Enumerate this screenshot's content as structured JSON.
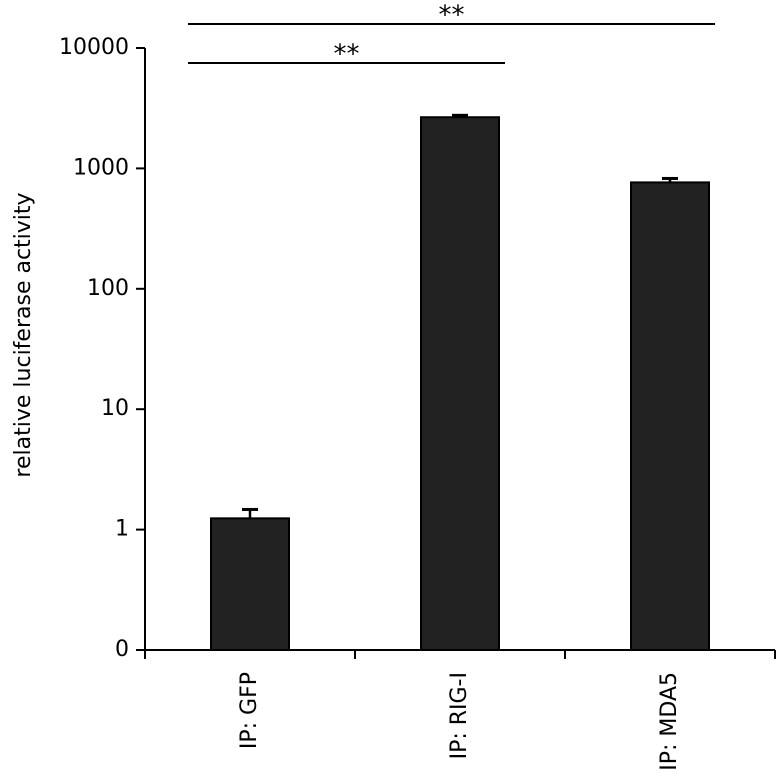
{
  "chart_data": {
    "type": "bar",
    "y_label": "relative luciferase activity",
    "categories": [
      "IP: GFP",
      "IP: RIG-I",
      "IP: MDA5"
    ],
    "values": [
      1.24,
      2660,
      765
    ],
    "errors": [
      0.23,
      100,
      60
    ],
    "color": "#222222",
    "log_scale": true,
    "ylim": [
      0.1,
      10000
    ],
    "yticks": [
      {
        "value": 0.1,
        "label": "0"
      },
      1,
      10,
      100,
      1000,
      10000
    ],
    "grid": false,
    "comparisons": [
      {
        "label": "**",
        "between": [
          "IP: GFP",
          "IP: MDA5"
        ]
      },
      {
        "label": "**",
        "between": [
          "IP: GFP",
          "IP: RIG-I"
        ]
      }
    ]
  }
}
